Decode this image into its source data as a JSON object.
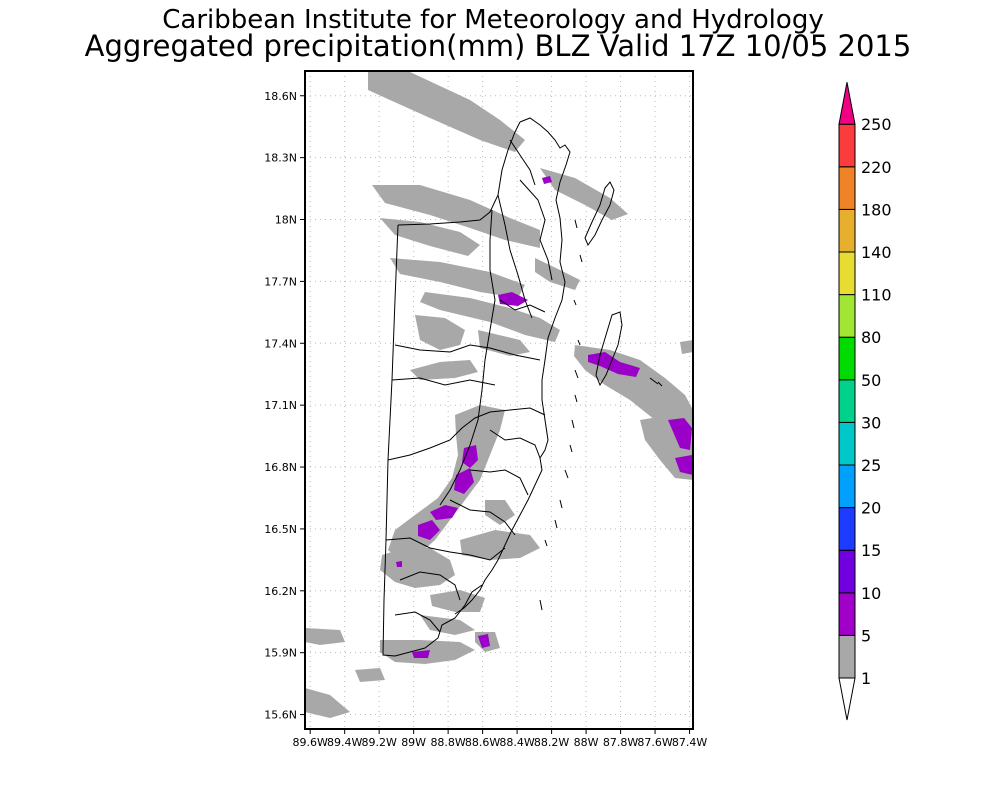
{
  "header": {
    "title": "Caribbean Institute for Meteorology and Hydrology",
    "subtitle": "Aggregated precipitation(mm) BLZ Valid 17Z 10/05 2015"
  },
  "map": {
    "lat_labels": [
      "18.6N",
      "18.3N",
      "18N",
      "17.7N",
      "17.4N",
      "17.1N",
      "16.8N",
      "16.5N",
      "16.2N",
      "15.9N",
      "15.6N"
    ],
    "lon_labels": [
      "89.6W",
      "89.4W",
      "89.2W",
      "89W",
      "88.8W",
      "88.6W",
      "88.4W",
      "88.2W",
      "88W",
      "87.8W",
      "87.6W",
      "87.4W"
    ],
    "lat_values": [
      18.6,
      18.3,
      18.0,
      17.7,
      17.4,
      17.1,
      16.8,
      16.5,
      16.2,
      15.9,
      15.6
    ],
    "lon_values": [
      -89.6,
      -89.4,
      -89.2,
      -89.0,
      -88.8,
      -88.6,
      -88.4,
      -88.2,
      -88.0,
      -87.8,
      -87.6,
      -87.4
    ],
    "lat_range": [
      15.53,
      18.72
    ],
    "lon_range": [
      -89.63,
      -87.38
    ],
    "grid": true,
    "precip_colors": {
      "1-5": "#a8a8a8",
      "5-10": "#9a00c8"
    }
  },
  "colorbar": {
    "labels": [
      "1",
      "5",
      "10",
      "15",
      "20",
      "25",
      "30",
      "50",
      "80",
      "110",
      "140",
      "180",
      "220",
      "250"
    ],
    "colors": [
      "#a8a8a8",
      "#a000c8",
      "#7000e0",
      "#1e3cff",
      "#00a0ff",
      "#00c8c8",
      "#00d28c",
      "#00dc00",
      "#a0e632",
      "#e6dc32",
      "#e6af2d",
      "#f08228",
      "#fa3c3c",
      "#f00082"
    ],
    "bottom_color": "#ffffff"
  }
}
